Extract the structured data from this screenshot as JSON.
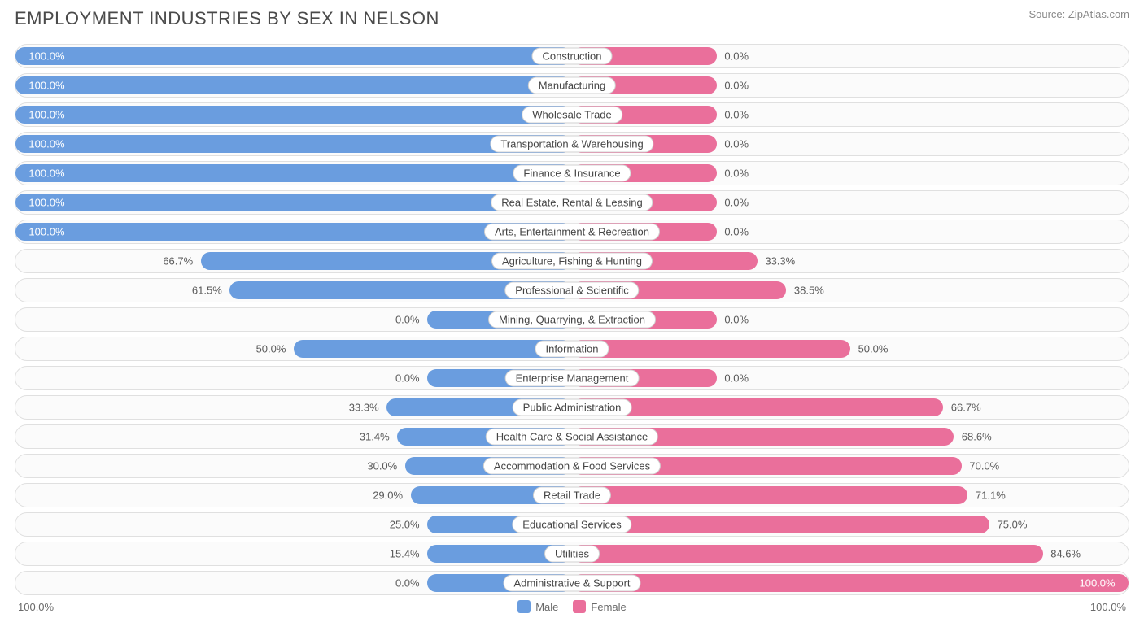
{
  "title": "EMPLOYMENT INDUSTRIES BY SEX IN NELSON",
  "source": "Source: ZipAtlas.com",
  "chart": {
    "type": "diverging-bar",
    "male_color": "#6a9ddf",
    "female_color": "#ea6f9b",
    "male_label_inside_color": "#ffffff",
    "male_label_outside_color": "#5a5a5a",
    "female_label_inside_color": "#ffffff",
    "female_label_outside_color": "#5a5a5a",
    "row_bg": "#fbfbfb",
    "row_border": "#e0e0e0",
    "label_bg": "#ffffff",
    "label_border": "#d0d0d0",
    "min_bar_pct": 13,
    "rows": [
      {
        "category": "Construction",
        "male_pct": 100.0,
        "female_pct": 0.0,
        "male_label": "100.0%",
        "female_label": "0.0%"
      },
      {
        "category": "Manufacturing",
        "male_pct": 100.0,
        "female_pct": 0.0,
        "male_label": "100.0%",
        "female_label": "0.0%"
      },
      {
        "category": "Wholesale Trade",
        "male_pct": 100.0,
        "female_pct": 0.0,
        "male_label": "100.0%",
        "female_label": "0.0%"
      },
      {
        "category": "Transportation & Warehousing",
        "male_pct": 100.0,
        "female_pct": 0.0,
        "male_label": "100.0%",
        "female_label": "0.0%"
      },
      {
        "category": "Finance & Insurance",
        "male_pct": 100.0,
        "female_pct": 0.0,
        "male_label": "100.0%",
        "female_label": "0.0%"
      },
      {
        "category": "Real Estate, Rental & Leasing",
        "male_pct": 100.0,
        "female_pct": 0.0,
        "male_label": "100.0%",
        "female_label": "0.0%"
      },
      {
        "category": "Arts, Entertainment & Recreation",
        "male_pct": 100.0,
        "female_pct": 0.0,
        "male_label": "100.0%",
        "female_label": "0.0%"
      },
      {
        "category": "Agriculture, Fishing & Hunting",
        "male_pct": 66.7,
        "female_pct": 33.3,
        "male_label": "66.7%",
        "female_label": "33.3%"
      },
      {
        "category": "Professional & Scientific",
        "male_pct": 61.5,
        "female_pct": 38.5,
        "male_label": "61.5%",
        "female_label": "38.5%"
      },
      {
        "category": "Mining, Quarrying, & Extraction",
        "male_pct": 0.0,
        "female_pct": 0.0,
        "male_label": "0.0%",
        "female_label": "0.0%"
      },
      {
        "category": "Information",
        "male_pct": 50.0,
        "female_pct": 50.0,
        "male_label": "50.0%",
        "female_label": "50.0%"
      },
      {
        "category": "Enterprise Management",
        "male_pct": 0.0,
        "female_pct": 0.0,
        "male_label": "0.0%",
        "female_label": "0.0%"
      },
      {
        "category": "Public Administration",
        "male_pct": 33.3,
        "female_pct": 66.7,
        "male_label": "33.3%",
        "female_label": "66.7%"
      },
      {
        "category": "Health Care & Social Assistance",
        "male_pct": 31.4,
        "female_pct": 68.6,
        "male_label": "31.4%",
        "female_label": "68.6%"
      },
      {
        "category": "Accommodation & Food Services",
        "male_pct": 30.0,
        "female_pct": 70.0,
        "male_label": "30.0%",
        "female_label": "70.0%"
      },
      {
        "category": "Retail Trade",
        "male_pct": 29.0,
        "female_pct": 71.1,
        "male_label": "29.0%",
        "female_label": "71.1%"
      },
      {
        "category": "Educational Services",
        "male_pct": 25.0,
        "female_pct": 75.0,
        "male_label": "25.0%",
        "female_label": "75.0%"
      },
      {
        "category": "Utilities",
        "male_pct": 15.4,
        "female_pct": 84.6,
        "male_label": "15.4%",
        "female_label": "84.6%"
      },
      {
        "category": "Administrative & Support",
        "male_pct": 0.0,
        "female_pct": 100.0,
        "male_label": "0.0%",
        "female_label": "100.0%"
      }
    ],
    "axis": {
      "left": "100.0%",
      "right": "100.0%"
    },
    "legend": {
      "male": "Male",
      "female": "Female"
    }
  }
}
